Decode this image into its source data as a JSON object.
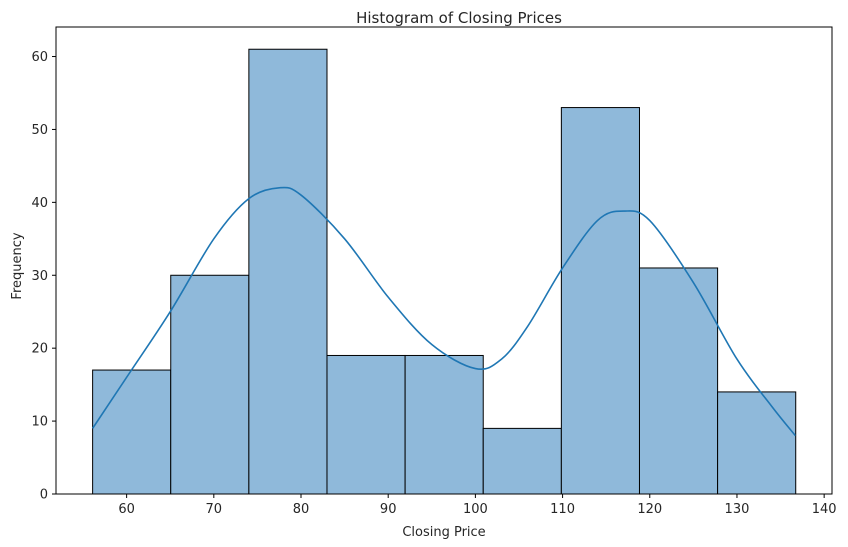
{
  "chart_data": {
    "type": "bar",
    "title": "Histogram of Closing Prices",
    "xlabel": "Closing Price",
    "ylabel": "Frequency",
    "xlim": [
      51.9,
      140.9
    ],
    "ylim": [
      0,
      64.05
    ],
    "x_ticks": [
      60,
      70,
      80,
      90,
      100,
      110,
      120,
      130,
      140
    ],
    "y_ticks": [
      0,
      10,
      20,
      30,
      40,
      50,
      60
    ],
    "bins": [
      {
        "start": 56.1,
        "end": 65.06,
        "count": 17
      },
      {
        "start": 65.06,
        "end": 74.02,
        "count": 30
      },
      {
        "start": 74.02,
        "end": 82.98,
        "count": 61
      },
      {
        "start": 82.98,
        "end": 91.94,
        "count": 19
      },
      {
        "start": 91.94,
        "end": 100.9,
        "count": 19
      },
      {
        "start": 100.9,
        "end": 109.86,
        "count": 9
      },
      {
        "start": 109.86,
        "end": 118.82,
        "count": 53
      },
      {
        "start": 118.82,
        "end": 127.78,
        "count": 31
      },
      {
        "start": 127.78,
        "end": 136.74,
        "count": 14
      }
    ],
    "kde": {
      "x": [
        56.1,
        60,
        65,
        70,
        74,
        77.5,
        80,
        85,
        90,
        95,
        100,
        103,
        106,
        110,
        114,
        117,
        120,
        125,
        130,
        134,
        136.7
      ],
      "y": [
        9,
        16,
        25,
        35,
        40.5,
        42,
        41,
        35,
        27,
        20.5,
        17.2,
        18.5,
        23,
        31,
        37.5,
        38.8,
        37.5,
        29,
        18.5,
        12,
        8
      ]
    },
    "grid": false,
    "colors": {
      "bar_fill": "#8fb9da",
      "bar_edge": "#000000",
      "kde_line": "#1f77b4",
      "axis": "#000000"
    }
  }
}
